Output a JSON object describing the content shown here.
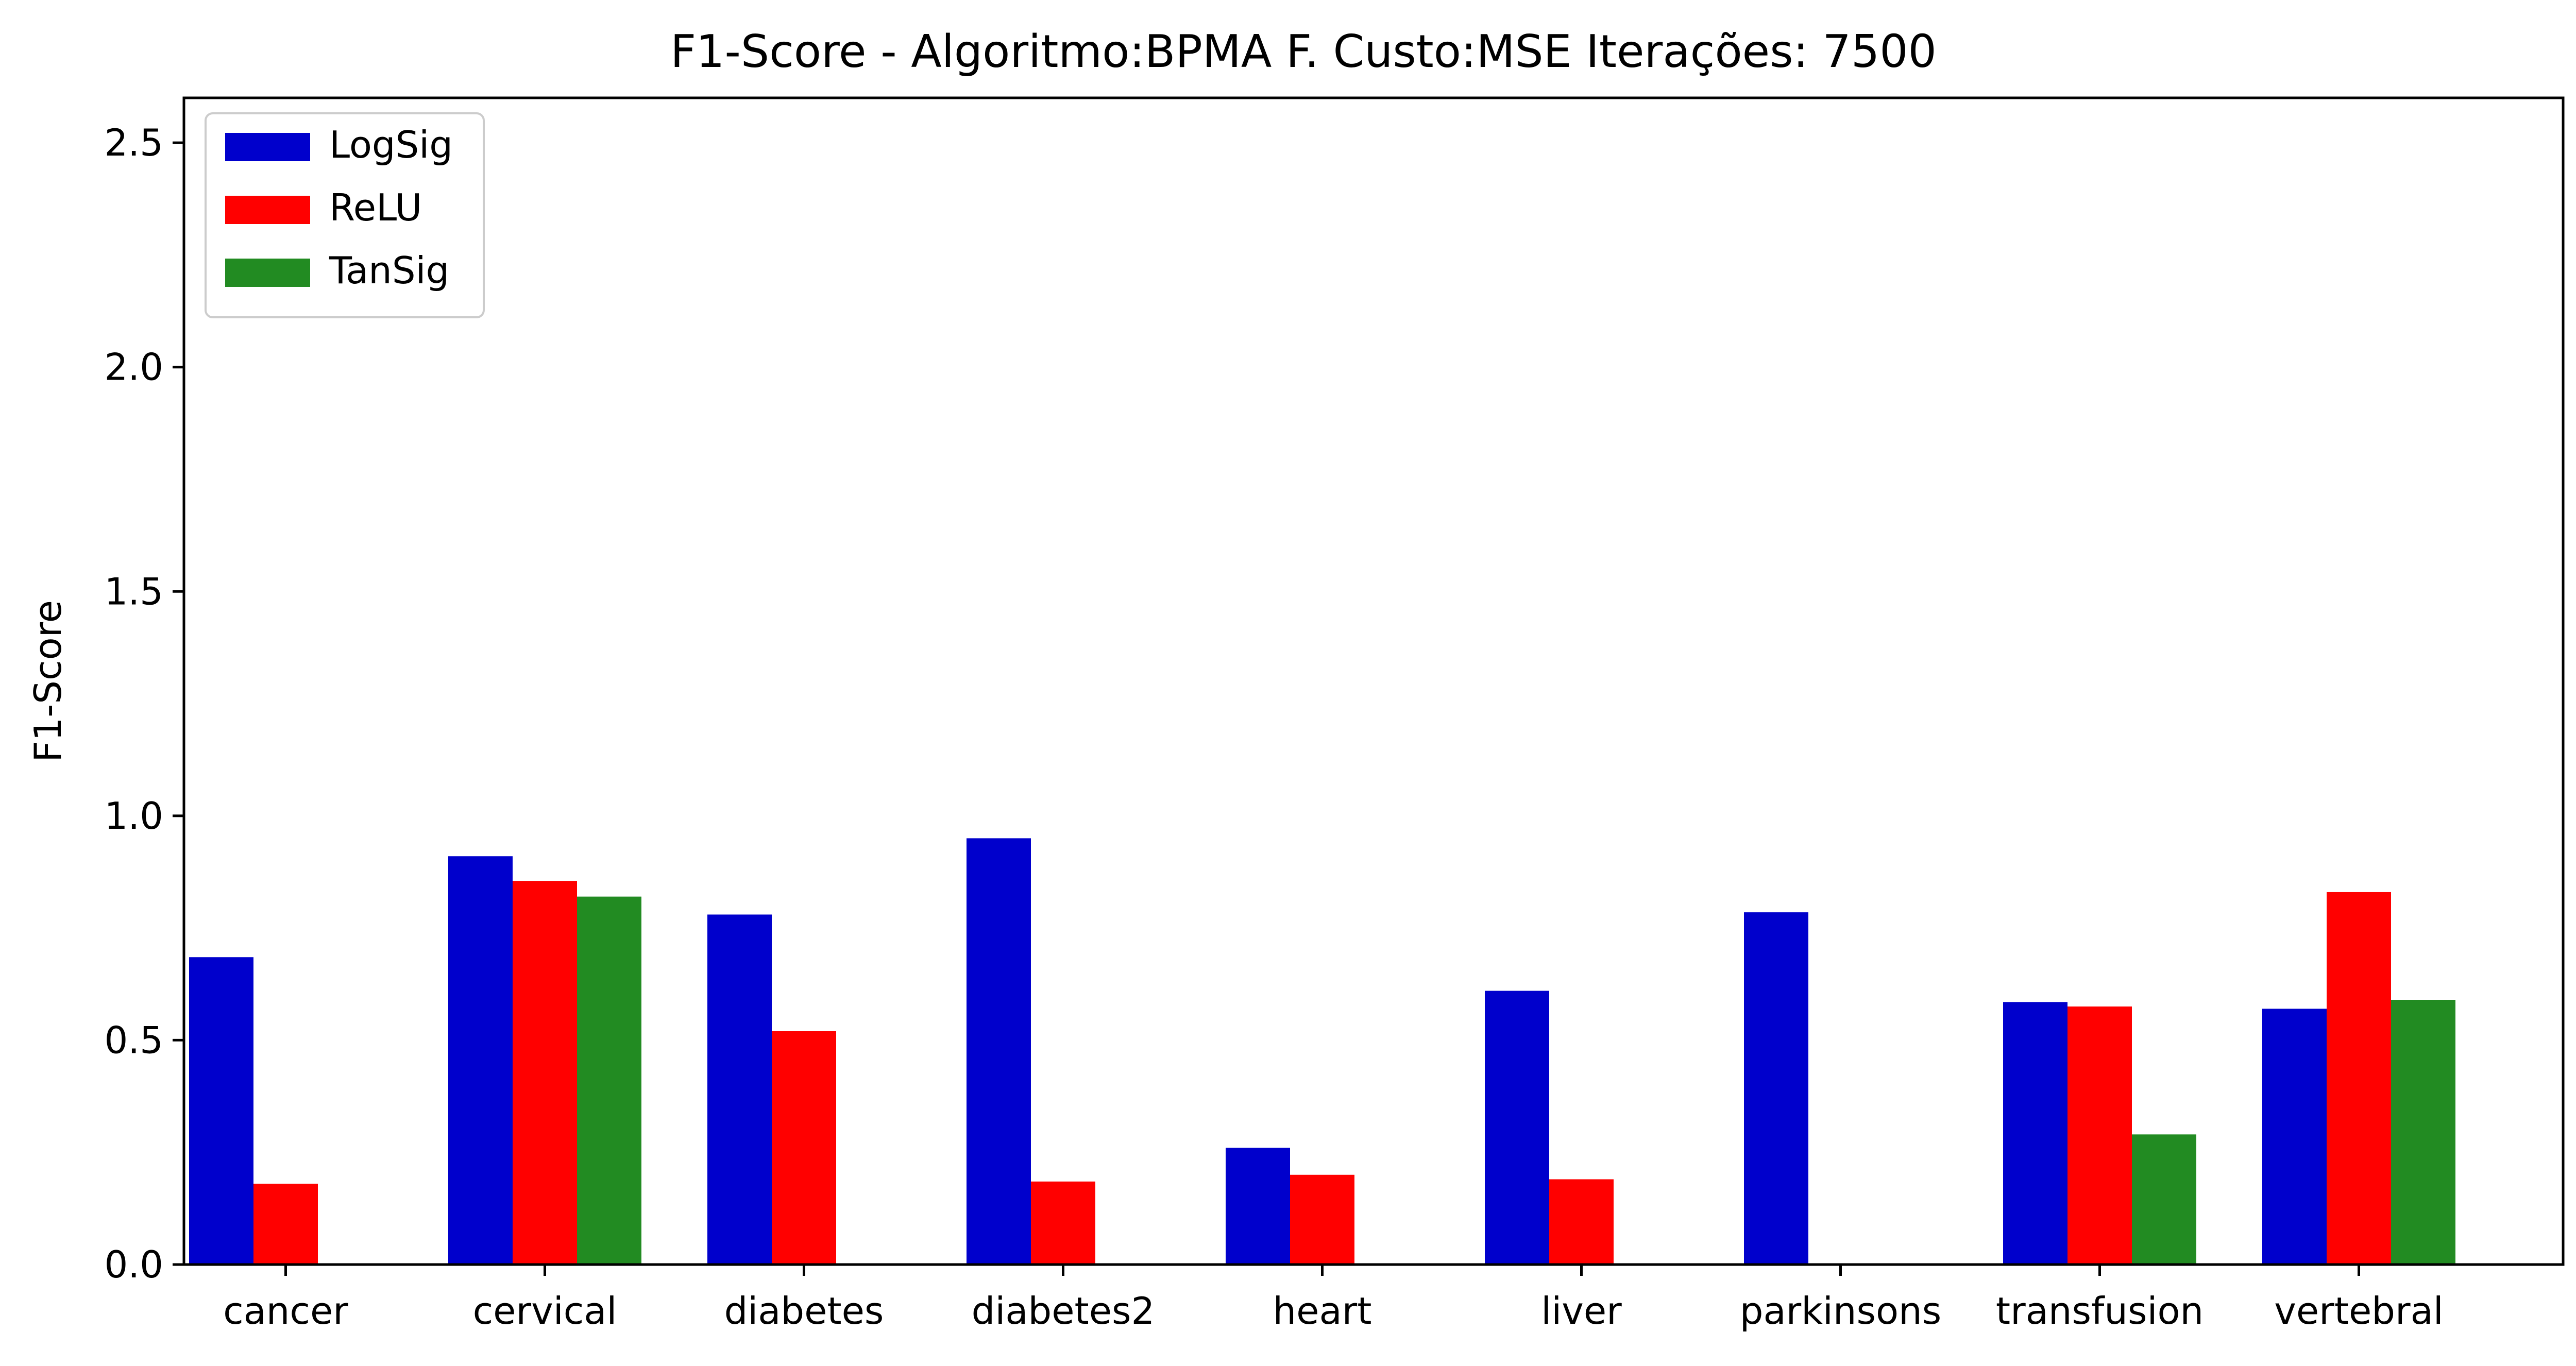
{
  "chart_data": {
    "type": "bar",
    "title": "F1-Score - Algoritmo:BPMA F. Custo:MSE Iterações: 7500",
    "xlabel": "",
    "ylabel": "F1-Score",
    "ylim": [
      0,
      2.6
    ],
    "yticks": [
      "0.0",
      "0.5",
      "1.0",
      "1.5",
      "2.0",
      "2.5"
    ],
    "ytick_values": [
      0.0,
      0.5,
      1.0,
      1.5,
      2.0,
      2.5
    ],
    "grid": false,
    "legend_position": "top-left",
    "categories": [
      "cancer",
      "cervical",
      "diabetes",
      "diabetes2",
      "heart",
      "liver",
      "parkinsons",
      "transfusion",
      "vertebral"
    ],
    "series": [
      {
        "name": "LogSig",
        "color": "#0000cc",
        "values": [
          0.685,
          0.91,
          0.78,
          0.95,
          0.26,
          0.61,
          0.785,
          0.585,
          0.57
        ]
      },
      {
        "name": "ReLU",
        "color": "#ff0000",
        "values": [
          0.18,
          0.855,
          0.52,
          0.185,
          0.2,
          0.19,
          0.0,
          0.575,
          0.83
        ]
      },
      {
        "name": "TanSig",
        "color": "#228b22",
        "values": [
          0.0,
          0.82,
          0.0,
          0.0,
          0.0,
          0.0,
          0.0,
          0.29,
          0.59
        ]
      }
    ]
  }
}
